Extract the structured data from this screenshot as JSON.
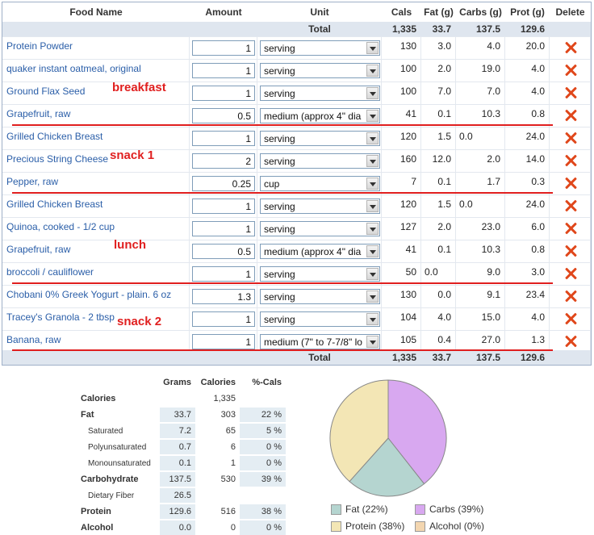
{
  "table": {
    "headers": {
      "food_name": "Food Name",
      "amount": "Amount",
      "unit": "Unit",
      "cals": "Cals",
      "fat": "Fat (g)",
      "carbs": "Carbs (g)",
      "prot": "Prot (g)",
      "delete": "Delete"
    },
    "total": {
      "label": "Total",
      "cals": "1,335",
      "fat": "33.7",
      "carbs": "137.5",
      "prot": "129.6"
    },
    "rows": [
      {
        "name": "Protein Powder",
        "amount": "1",
        "unit": "serving",
        "cals": "130",
        "fat": "3.0",
        "carbs": "4.0",
        "prot": "20.0"
      },
      {
        "name": "quaker instant oatmeal, original",
        "amount": "1",
        "unit": "serving",
        "cals": "100",
        "fat": "2.0",
        "carbs": "19.0",
        "prot": "4.0"
      },
      {
        "name": "Ground Flax Seed",
        "amount": "1",
        "unit": "serving",
        "cals": "100",
        "fat": "7.0",
        "carbs": "7.0",
        "prot": "4.0"
      },
      {
        "name": "Grapefruit, raw",
        "amount": "0.5",
        "unit": "medium (approx 4\" dia",
        "cals": "41",
        "fat": "0.1",
        "carbs": "10.3",
        "prot": "0.8"
      },
      {
        "name": "Grilled Chicken Breast",
        "amount": "1",
        "unit": "serving",
        "cals": "120",
        "fat": "1.5",
        "carbs": "0.0",
        "prot": "24.0"
      },
      {
        "name": "Precious String Cheese",
        "amount": "2",
        "unit": "serving",
        "cals": "160",
        "fat": "12.0",
        "carbs": "2.0",
        "prot": "14.0"
      },
      {
        "name": "Pepper, raw",
        "amount": "0.25",
        "unit": "cup",
        "cals": "7",
        "fat": "0.1",
        "carbs": "1.7",
        "prot": "0.3"
      },
      {
        "name": "Grilled Chicken Breast",
        "amount": "1",
        "unit": "serving",
        "cals": "120",
        "fat": "1.5",
        "carbs": "0.0",
        "prot": "24.0"
      },
      {
        "name": "Quinoa, cooked - 1/2 cup",
        "amount": "1",
        "unit": "serving",
        "cals": "127",
        "fat": "2.0",
        "carbs": "23.0",
        "prot": "6.0"
      },
      {
        "name": "Grapefruit, raw",
        "amount": "0.5",
        "unit": "medium (approx 4\" dia",
        "cals": "41",
        "fat": "0.1",
        "carbs": "10.3",
        "prot": "0.8"
      },
      {
        "name": "broccoli / cauliflower",
        "amount": "1",
        "unit": "serving",
        "cals": "50",
        "fat": "0.0",
        "carbs": "9.0",
        "prot": "3.0"
      },
      {
        "name": "Chobani 0% Greek Yogurt - plain. 6 oz",
        "amount": "1.3",
        "unit": "serving",
        "cals": "130",
        "fat": "0.0",
        "carbs": "9.1",
        "prot": "23.4"
      },
      {
        "name": "Tracey's Granola - 2 tbsp",
        "amount": "1",
        "unit": "serving",
        "cals": "104",
        "fat": "4.0",
        "carbs": "15.0",
        "prot": "4.0"
      },
      {
        "name": "Banana, raw",
        "amount": "1",
        "unit": "medium (7\" to 7-7/8\" lo",
        "cals": "105",
        "fat": "0.4",
        "carbs": "27.0",
        "prot": "1.3"
      }
    ],
    "annotations": {
      "breakfast": "breakfast",
      "snack1": "snack 1",
      "lunch": "lunch",
      "snack2": "snack 2"
    }
  },
  "nutrition": {
    "headers": {
      "grams": "Grams",
      "calories": "Calories",
      "pct": "%-Cals"
    },
    "rows": [
      {
        "label": "Calories",
        "grams": "",
        "calories": "1,335",
        "pct": ""
      },
      {
        "label": "Fat",
        "grams": "33.7",
        "calories": "303",
        "pct": "22 %"
      },
      {
        "label": "Saturated",
        "grams": "7.2",
        "calories": "65",
        "pct": "5 %"
      },
      {
        "label": "Polyunsaturated",
        "grams": "0.7",
        "calories": "6",
        "pct": "0 %"
      },
      {
        "label": "Monounsaturated",
        "grams": "0.1",
        "calories": "1",
        "pct": "0 %"
      },
      {
        "label": "Carbohydrate",
        "grams": "137.5",
        "calories": "530",
        "pct": "39 %"
      },
      {
        "label": "Dietary Fiber",
        "grams": "26.5",
        "calories": "",
        "pct": ""
      },
      {
        "label": "Protein",
        "grams": "129.6",
        "calories": "516",
        "pct": "38 %"
      },
      {
        "label": "Alcohol",
        "grams": "0.0",
        "calories": "0",
        "pct": "0 %"
      }
    ]
  },
  "pie": {
    "slices": [
      {
        "label": "Fat (22%)",
        "value": 22,
        "color": "#b5d5d0"
      },
      {
        "label": "Carbs (39%)",
        "value": 39,
        "color": "#d8a8f0"
      },
      {
        "label": "Protein (38%)",
        "value": 38,
        "color": "#f3e6b5"
      },
      {
        "label": "Alcohol (0%)",
        "value": 0,
        "color": "#f3d6b0"
      }
    ]
  },
  "colors": {
    "link": "#2a5ea8",
    "annotation": "#e01f1f",
    "delete": "#e0471b",
    "header_bg": "#dfe6ef"
  }
}
